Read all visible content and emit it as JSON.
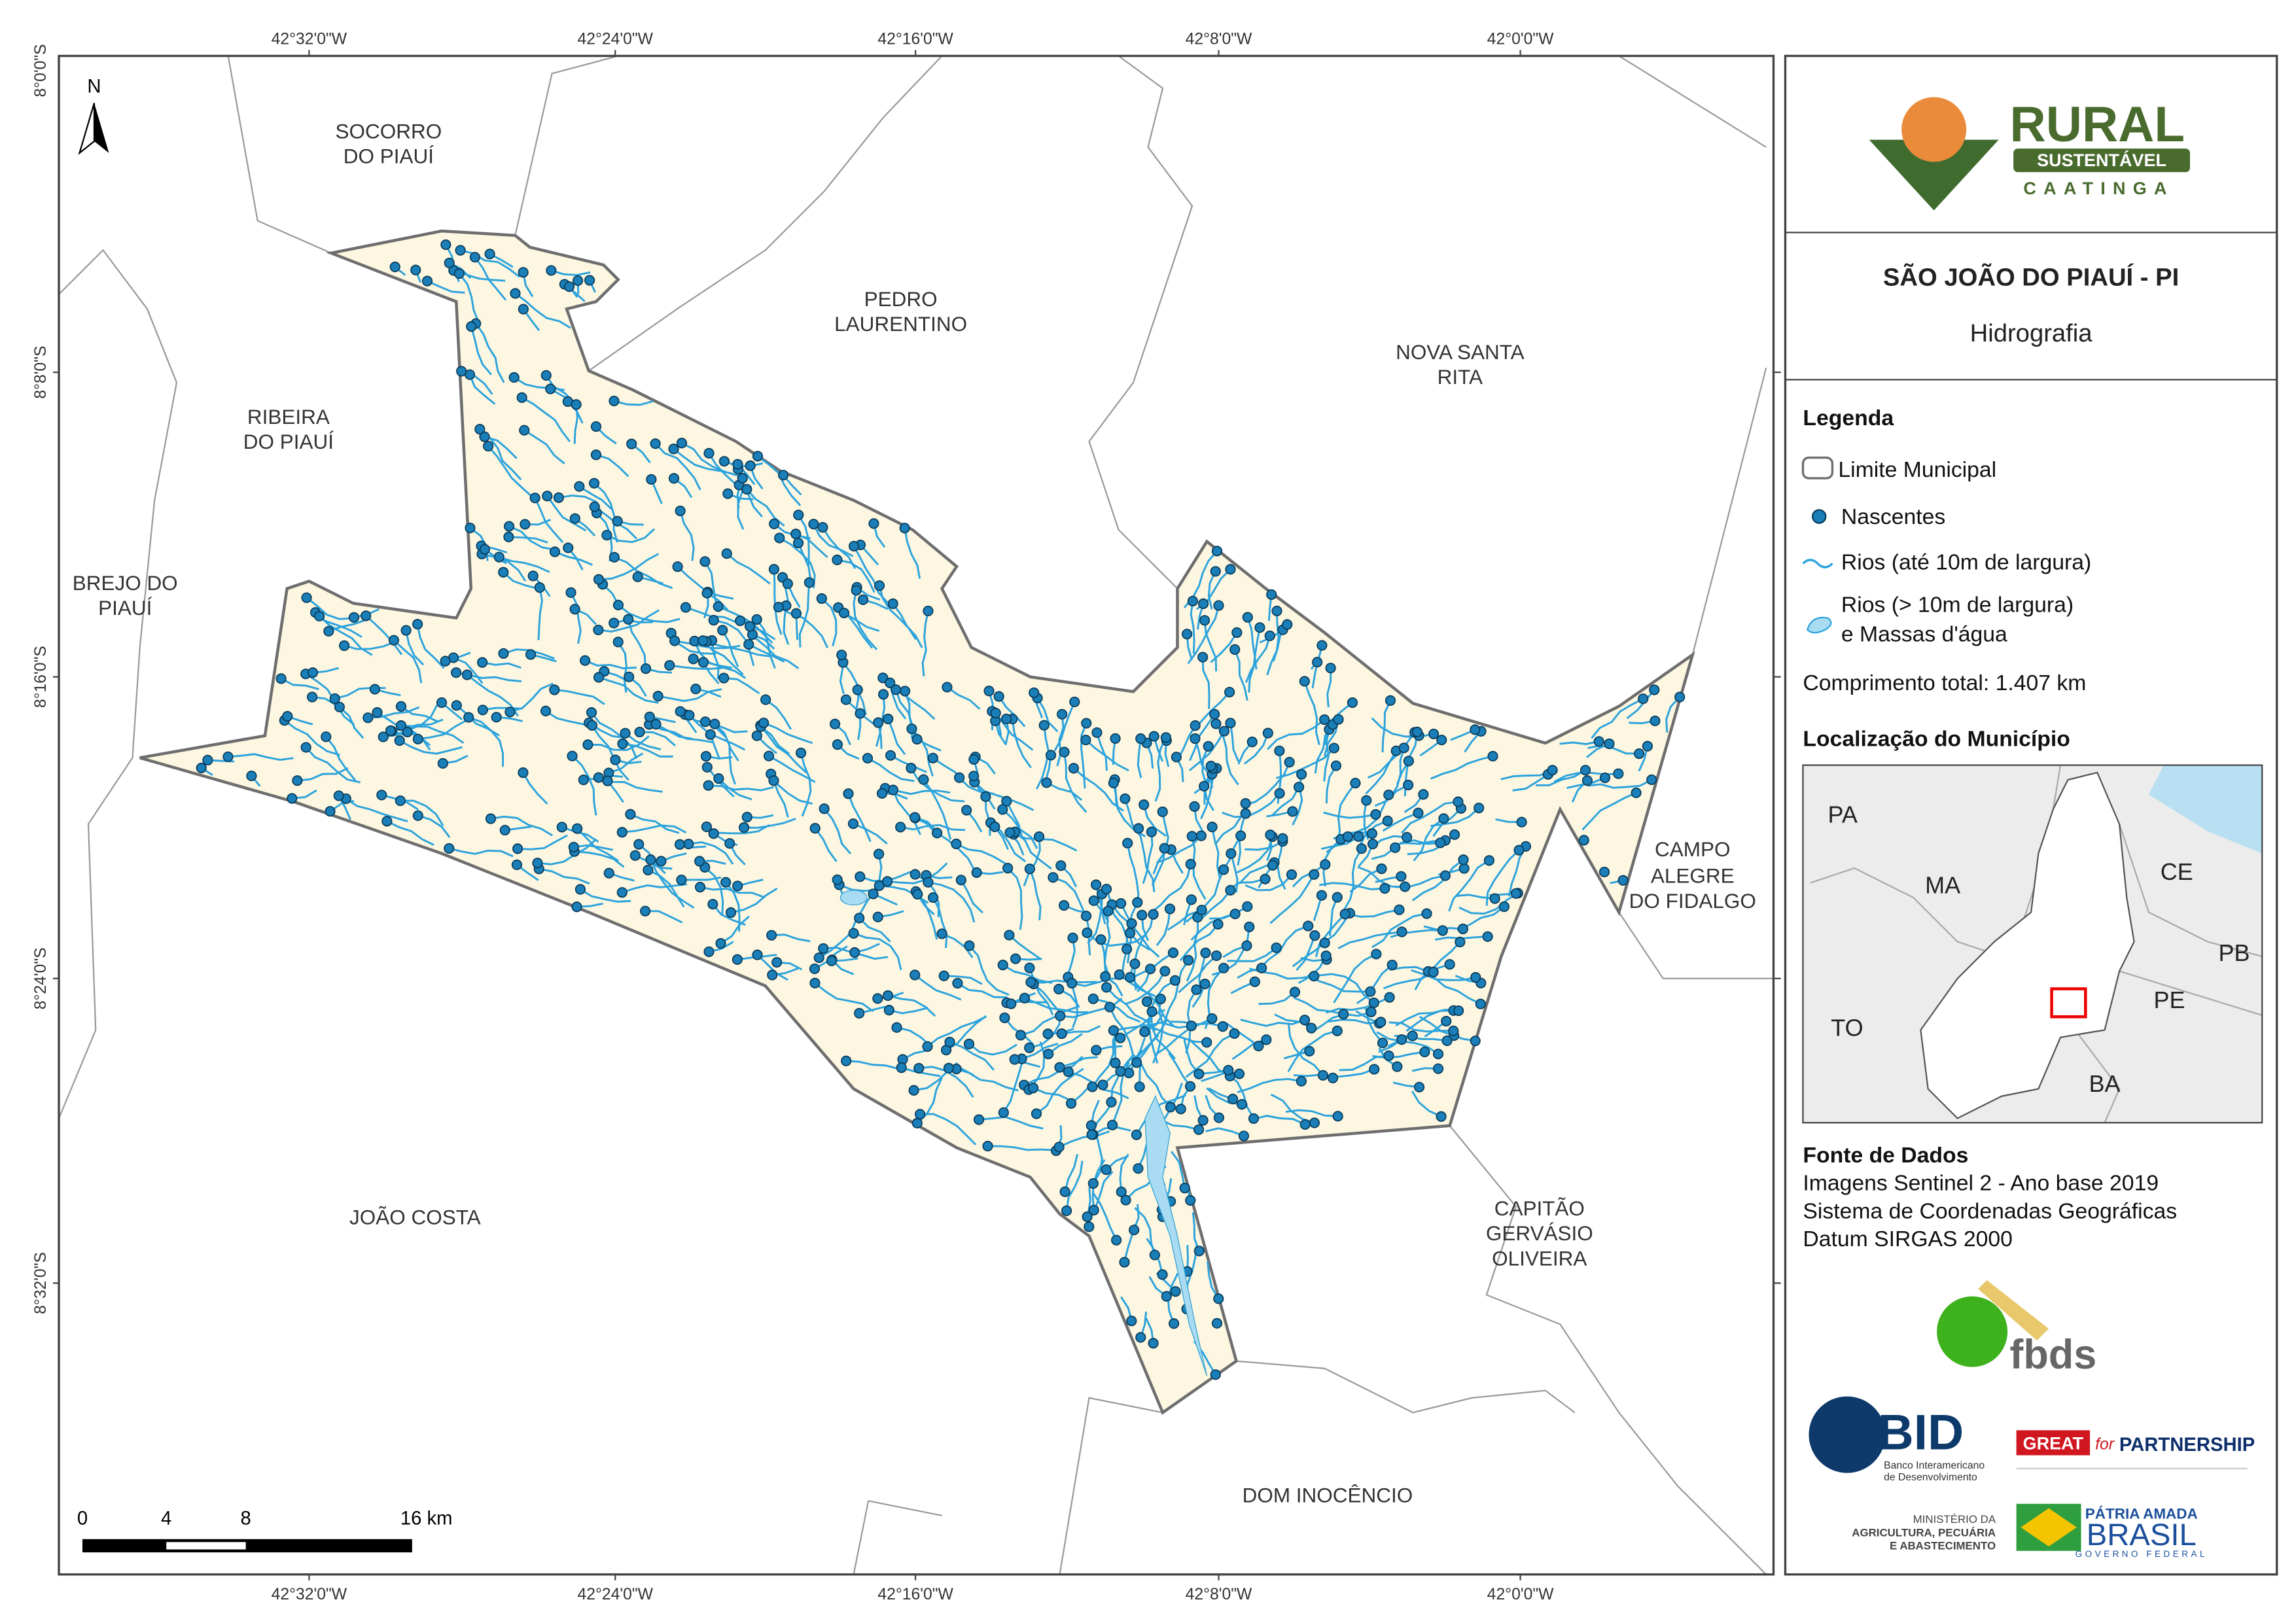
{
  "frame": {
    "lon_labels": [
      "42°32'0\"W",
      "42°24'0\"W",
      "42°16'0\"W",
      "42°8'0\"W",
      "42°0'0\"W"
    ],
    "lat_labels": [
      "8°0'0\"S",
      "8°8'0\"S",
      "8°16'0\"S",
      "8°24'0\"S",
      "8°32'0\"S"
    ]
  },
  "map": {
    "north": "N",
    "neighbors": [
      [
        "SOCORRO",
        "DO PIAUÍ"
      ],
      [
        "PEDRO",
        "LAURENTINO"
      ],
      [
        "NOVA SANTA",
        "RITA"
      ],
      [
        "RIBEIRA",
        "DO PIAUÍ"
      ],
      [
        "BREJO DO",
        "PIAUÍ"
      ],
      [
        "CAMPO",
        "ALEGRE",
        "DO FIDALGO"
      ],
      [
        "JOÃO COSTA"
      ],
      [
        "CAPITÃO",
        "GERVÁSIO",
        "OLIVEIRA"
      ],
      [
        "DOM INOCÊNCIO"
      ]
    ],
    "scale": [
      "0",
      "4",
      "8",
      "16 km"
    ]
  },
  "panel": {
    "logo": {
      "main": "RURAL",
      "band": "SUSTENTÁVEL",
      "sub": "CAATINGA"
    },
    "title": "SÃO JOÃO DO PIAUÍ - PI",
    "subtitle": "Hidrografia",
    "legend": {
      "heading": "Legenda",
      "items": [
        "Limite Municipal",
        "Nascentes",
        "Rios (até 10m de largura)",
        [
          "Rios (> 10m de largura)",
          "e Massas d'água"
        ]
      ],
      "total": "Comprimento total:  1.407 km"
    },
    "location": {
      "heading": "Localização do Município",
      "states": [
        "PA",
        "MA",
        "CE",
        "PB",
        "TO",
        "PE",
        "BA"
      ]
    },
    "source": {
      "heading": "Fonte de Dados",
      "lines": [
        "Imagens Sentinel 2 - Ano base 2019",
        "Sistema de Coordenadas Geográficas",
        "Datum SIRGAS 2000"
      ]
    },
    "partners": {
      "fbds": "fbds",
      "bid": "BID",
      "bid_name": [
        "Banco Interamericano",
        "de Desenvolvimento"
      ],
      "great": "GREAT",
      "great_for": "for",
      "great_partner": "PARTNERSHIP",
      "ministry": [
        "MINISTÉRIO DA",
        "AGRICULTURA, PECUÁRIA",
        "E ABASTECIMENTO"
      ],
      "brasil_top": "PÁTRIA AMADA",
      "brasil": "BRASIL",
      "brasil_sub": "GOVERNO FEDERAL"
    }
  }
}
